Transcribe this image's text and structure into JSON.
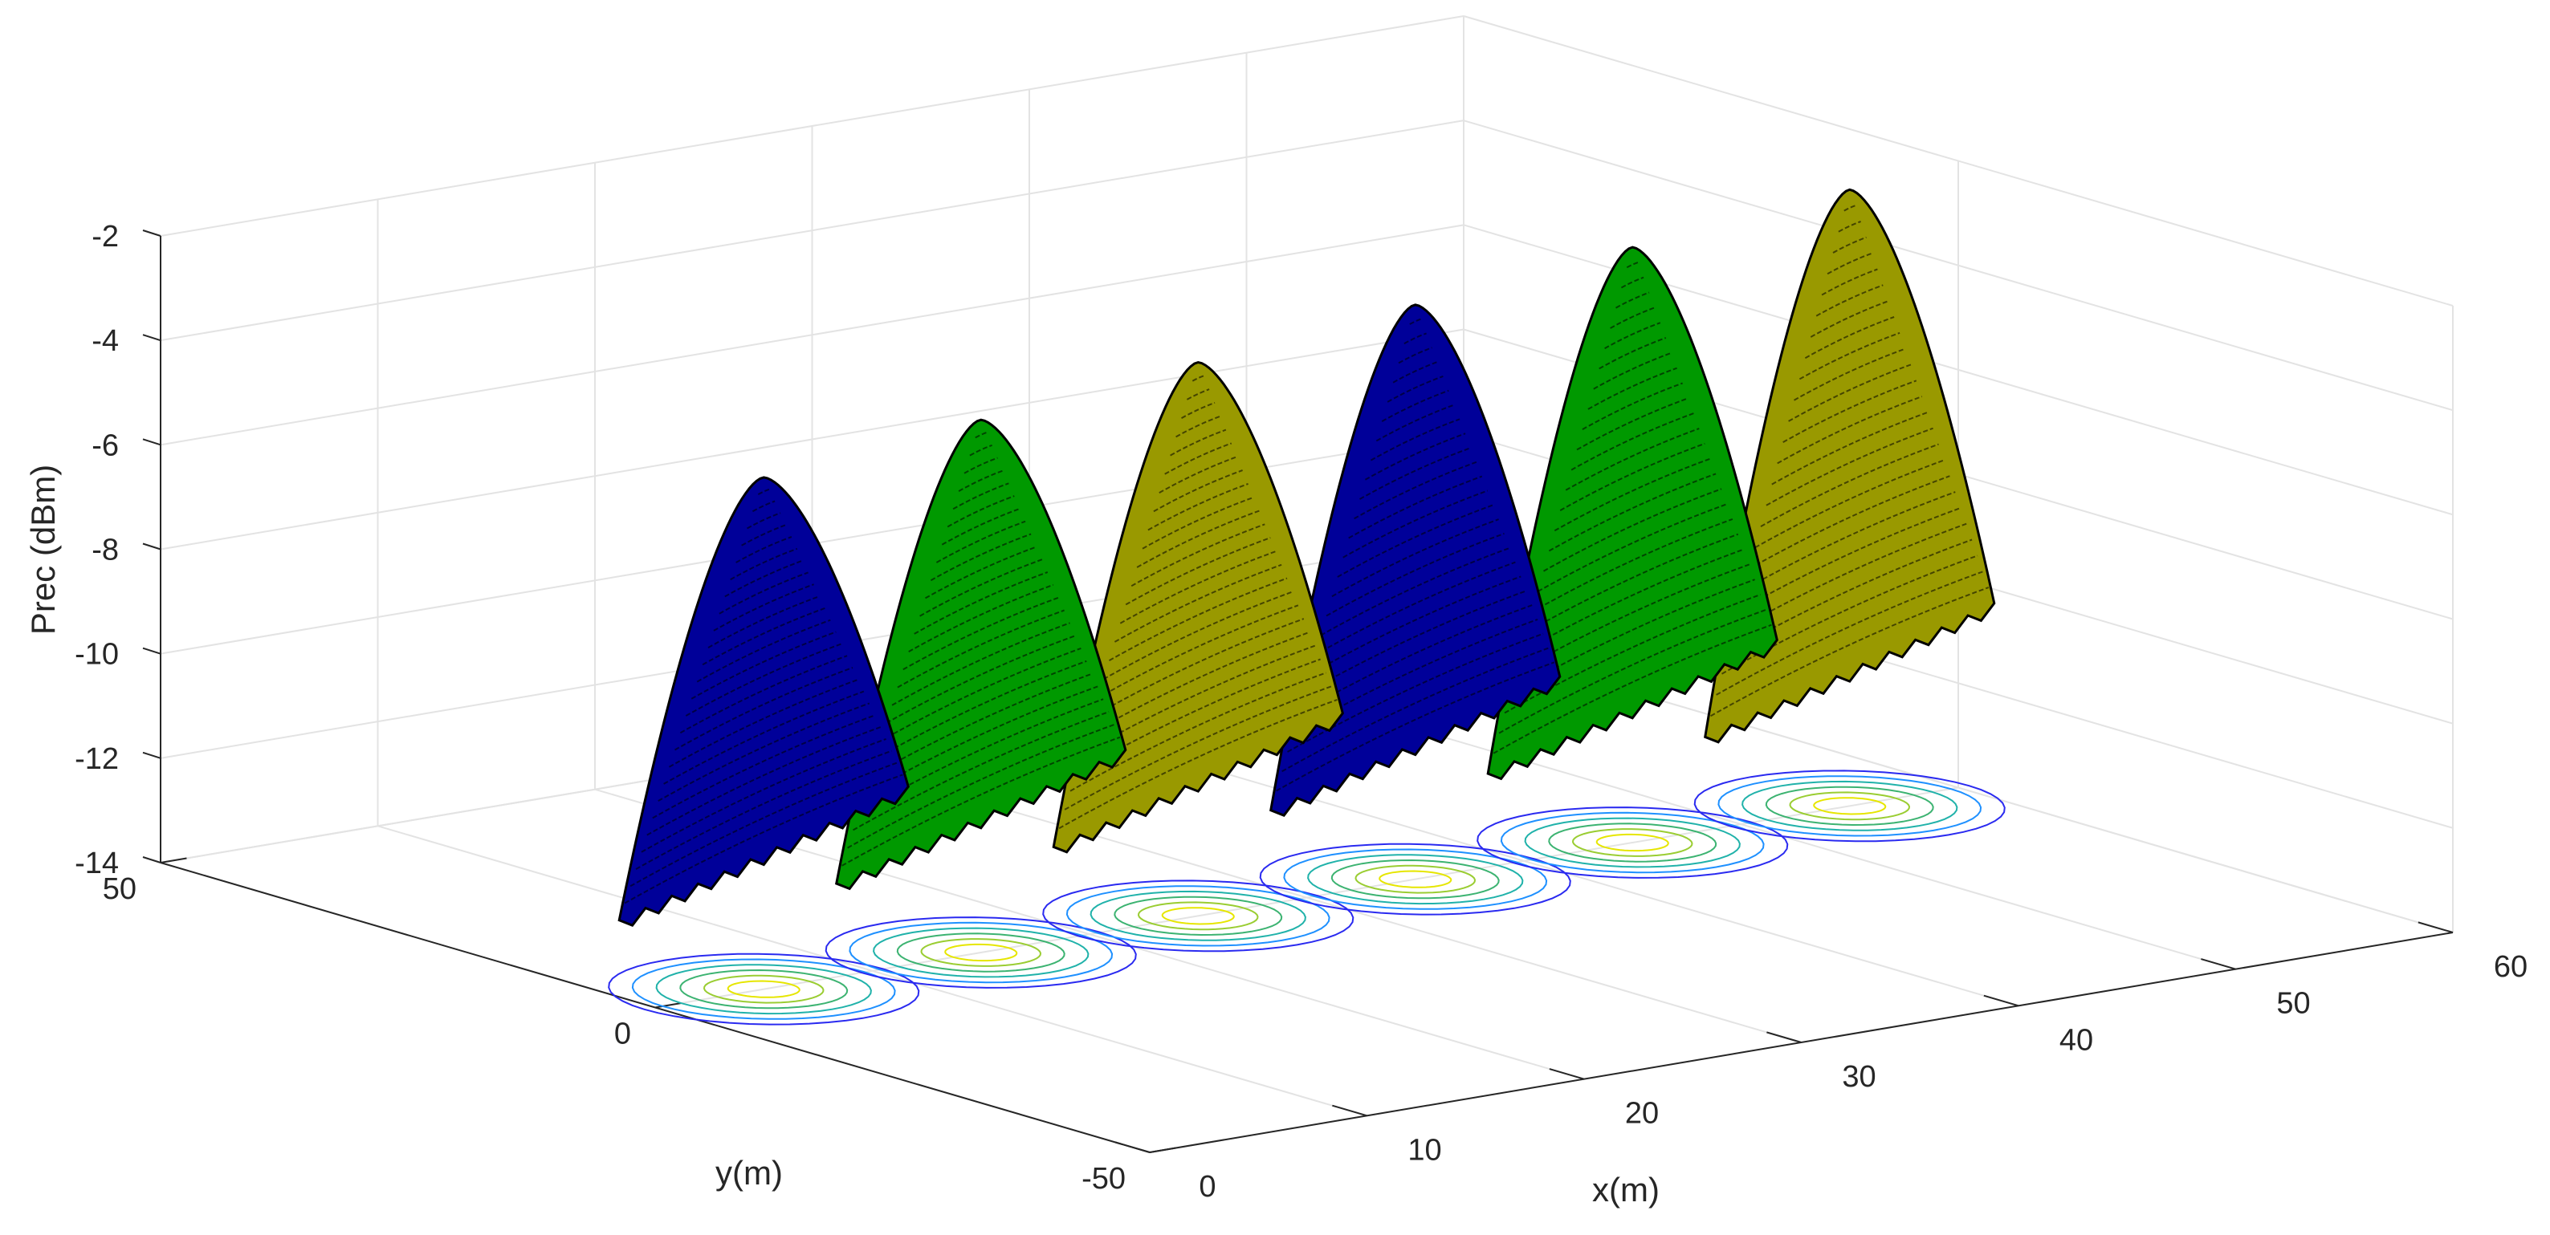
{
  "chart_data": {
    "type": "surface3d",
    "xlabel": "x(m)",
    "ylabel": "y(m)",
    "zlabel": "Prec (dBm)",
    "x_ticks": [
      "0",
      "10",
      "20",
      "30",
      "40",
      "50",
      "60"
    ],
    "y_ticks": [
      "50",
      "0",
      "-50"
    ],
    "z_ticks": [
      "-2",
      "-4",
      "-6",
      "-8",
      "-10",
      "-12",
      "-14"
    ],
    "xlim": [
      0,
      60
    ],
    "ylim": [
      -50,
      50
    ],
    "zlim": [
      -14,
      -2
    ],
    "grid": true,
    "series": [
      {
        "x": 5,
        "y": 0,
        "peak": -4.2,
        "base": -14,
        "color": "#000099"
      },
      {
        "x": 15,
        "y": 0,
        "peak": -3.8,
        "base": -14,
        "color": "#009900"
      },
      {
        "x": 25,
        "y": 0,
        "peak": -3.4,
        "base": -14,
        "color": "#999900"
      },
      {
        "x": 35,
        "y": 0,
        "peak": -3.0,
        "base": -14,
        "color": "#000099"
      },
      {
        "x": 45,
        "y": 0,
        "peak": -2.6,
        "base": -14,
        "color": "#009900"
      },
      {
        "x": 55,
        "y": 0,
        "peak": -2.2,
        "base": -14,
        "color": "#999900"
      }
    ],
    "contour_colors": [
      "#2a2af0",
      "#1e90ff",
      "#20b2aa",
      "#3cb371",
      "#9acd32",
      "#e6e600"
    ]
  }
}
